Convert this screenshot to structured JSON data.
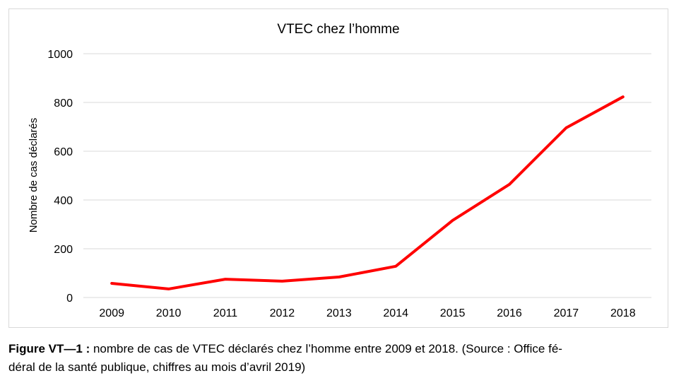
{
  "chart_data": {
    "type": "line",
    "title": "VTEC chez l’homme",
    "y_label": "Nombre de cas déclarés",
    "categories": [
      "2009",
      "2010",
      "2011",
      "2012",
      "2013",
      "2014",
      "2015",
      "2016",
      "2017",
      "2018"
    ],
    "series": [
      {
        "color": "#ff0000",
        "values": [
          58,
          35,
          75,
          67,
          84,
          128,
          316,
          464,
          696,
          823
        ]
      }
    ],
    "ylim": [
      0,
      1000
    ],
    "yticks": [
      0,
      200,
      400,
      600,
      800,
      1000
    ],
    "grid": true
  },
  "caption": {
    "label": "Figure VT—1 :",
    "lines": [
      "nombre de cas de VTEC déclarés chez l’homme entre 2009 et 2018. (Source : Office fé-",
      "déral de la santé publique, chiffres au mois d’avril 2019)"
    ]
  }
}
